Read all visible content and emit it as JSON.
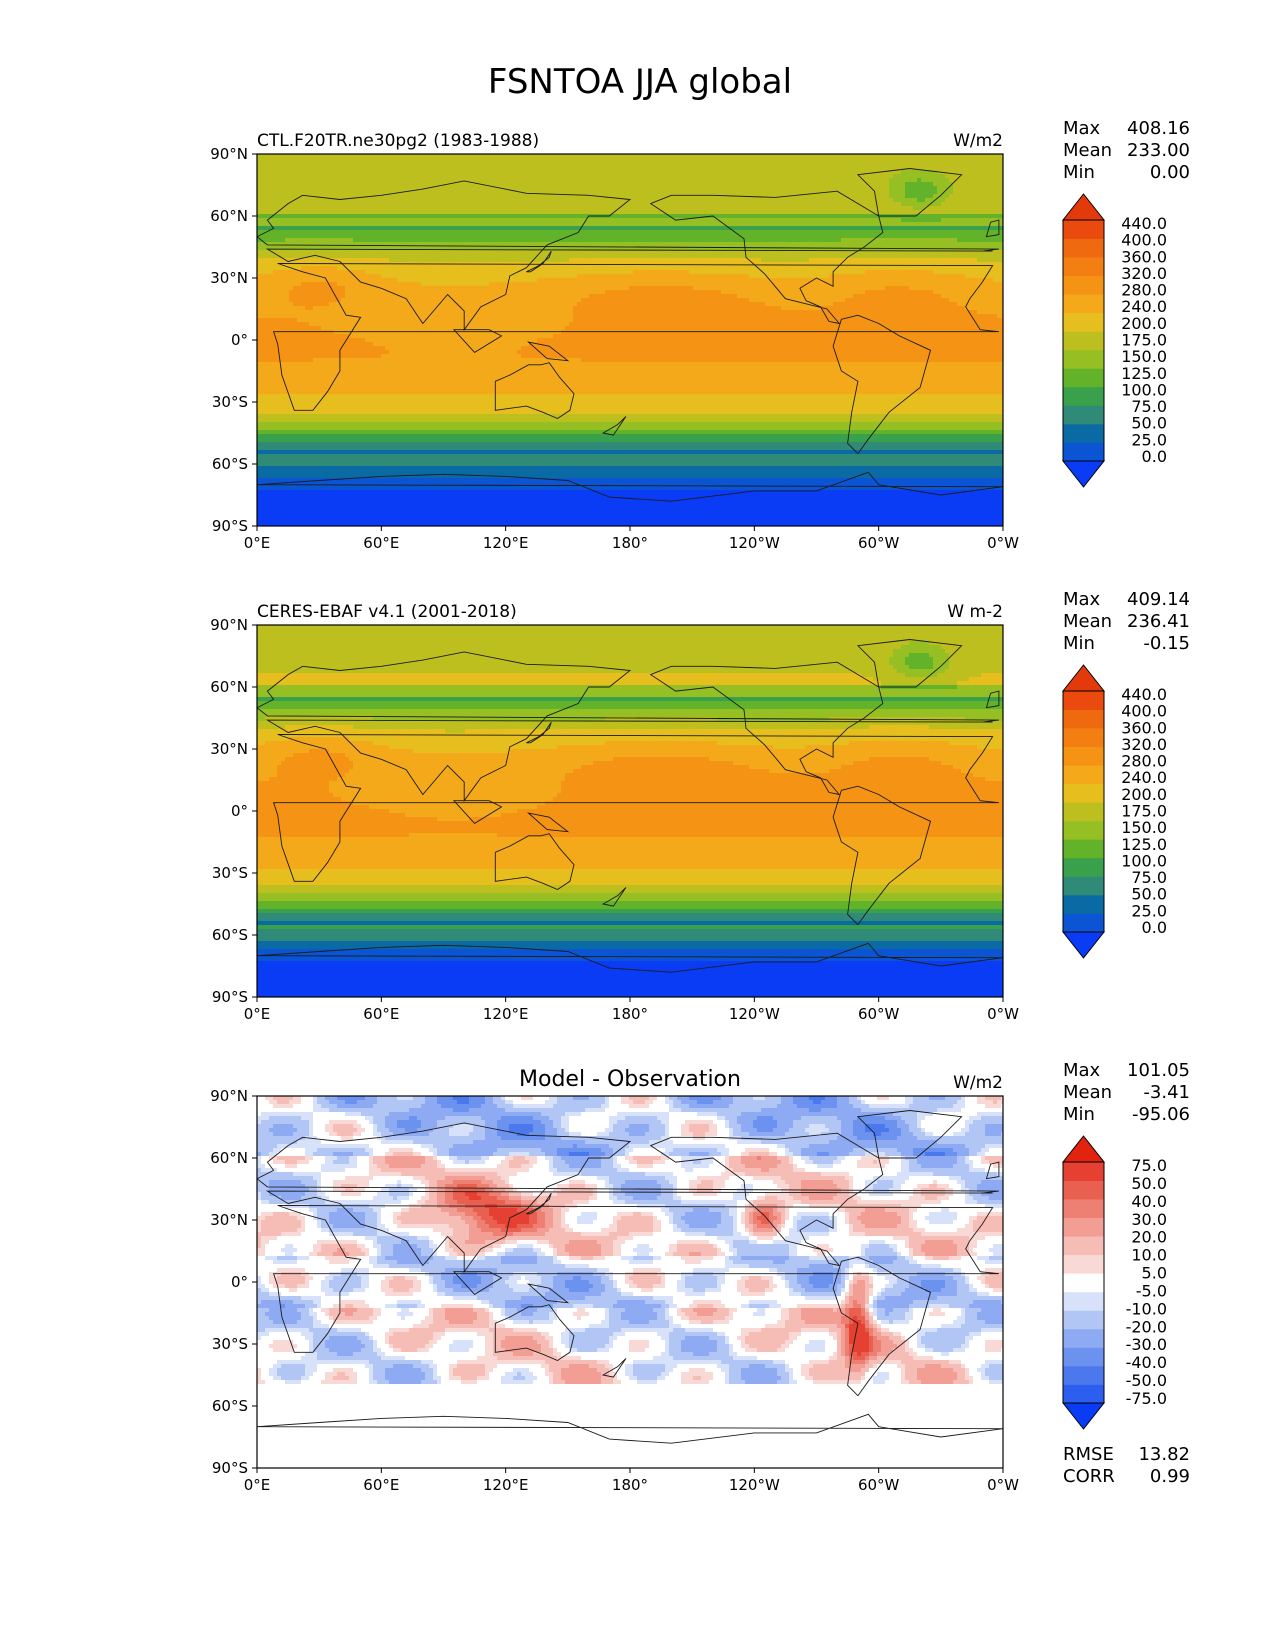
{
  "page_title": "FSNTOA JJA global",
  "colors": {
    "abs_levels": [
      "#0a3cf5",
      "#0b55d4",
      "#0a6aa3",
      "#2f8a78",
      "#39a14b",
      "#62b32a",
      "#95bf22",
      "#bcbf1e",
      "#e6bf1e",
      "#f4a91a",
      "#f59315",
      "#f37f12",
      "#ef6a0f",
      "#ea4a0d",
      "#e33a0c"
    ],
    "diff_levels": [
      "#0a3cf5",
      "#2c5ef0",
      "#4b78ec",
      "#6b92ee",
      "#8eaaf2",
      "#b2c6f6",
      "#d7e2fa",
      "#ffffff",
      "#f9d9d5",
      "#f6bdb6",
      "#f29e94",
      "#ee8073",
      "#ea6050",
      "#e54032",
      "#e12310"
    ]
  },
  "chart_data": [
    {
      "type": "heatmap",
      "panel": "model",
      "title": "",
      "left_label": "CTL.F20TR.ne30pg2 (1983-1988)",
      "units": "W/m2",
      "stats": [
        {
          "label": "Max",
          "value": "408.16"
        },
        {
          "label": "Mean",
          "value": "233.00"
        },
        {
          "label": "Min",
          "value": "0.00"
        }
      ],
      "colorbar_ticks": [
        "440.0",
        "400.0",
        "360.0",
        "320.0",
        "280.0",
        "240.0",
        "200.0",
        "175.0",
        "150.0",
        "125.0",
        "100.0",
        "75.0",
        "50.0",
        "25.0",
        "0.0"
      ],
      "x_ticks": [
        "0°E",
        "60°E",
        "120°E",
        "180°",
        "120°W",
        "60°W",
        "0°W"
      ],
      "y_ticks": [
        "90°N",
        "60°N",
        "30°N",
        "0°",
        "30°S",
        "60°S",
        "90°S"
      ],
      "xlim": [
        0,
        360
      ],
      "ylim": [
        -90,
        90
      ]
    },
    {
      "type": "heatmap",
      "panel": "observation",
      "title": "",
      "left_label": "CERES-EBAF v4.1 (2001-2018)",
      "units": "W m-2",
      "stats": [
        {
          "label": "Max",
          "value": "409.14"
        },
        {
          "label": "Mean",
          "value": "236.41"
        },
        {
          "label": "Min",
          "value": "-0.15"
        }
      ],
      "colorbar_ticks": [
        "440.0",
        "400.0",
        "360.0",
        "320.0",
        "280.0",
        "240.0",
        "200.0",
        "175.0",
        "150.0",
        "125.0",
        "100.0",
        "75.0",
        "50.0",
        "25.0",
        "0.0"
      ],
      "x_ticks": [
        "0°E",
        "60°E",
        "120°E",
        "180°",
        "120°W",
        "60°W",
        "0°W"
      ],
      "y_ticks": [
        "90°N",
        "60°N",
        "30°N",
        "0°",
        "30°S",
        "60°S",
        "90°S"
      ],
      "xlim": [
        0,
        360
      ],
      "ylim": [
        -90,
        90
      ]
    },
    {
      "type": "heatmap",
      "panel": "difference",
      "title": "Model - Observation",
      "left_label": "",
      "units": "W/m2",
      "stats": [
        {
          "label": "Max",
          "value": "101.05"
        },
        {
          "label": "Mean",
          "value": "-3.41"
        },
        {
          "label": "Min",
          "value": "-95.06"
        }
      ],
      "extra_stats": [
        {
          "label": "RMSE",
          "value": "13.82"
        },
        {
          "label": "CORR",
          "value": "0.99"
        }
      ],
      "colorbar_ticks": [
        "75.0",
        "50.0",
        "40.0",
        "30.0",
        "20.0",
        "10.0",
        "5.0",
        "-5.0",
        "-10.0",
        "-20.0",
        "-30.0",
        "-40.0",
        "-50.0",
        "-75.0"
      ],
      "x_ticks": [
        "0°E",
        "60°E",
        "120°E",
        "180°",
        "120°W",
        "60°W",
        "0°W"
      ],
      "y_ticks": [
        "90°N",
        "60°N",
        "30°N",
        "0°",
        "30°S",
        "60°S",
        "90°S"
      ],
      "xlim": [
        0,
        360
      ],
      "ylim": [
        -90,
        90
      ]
    }
  ]
}
